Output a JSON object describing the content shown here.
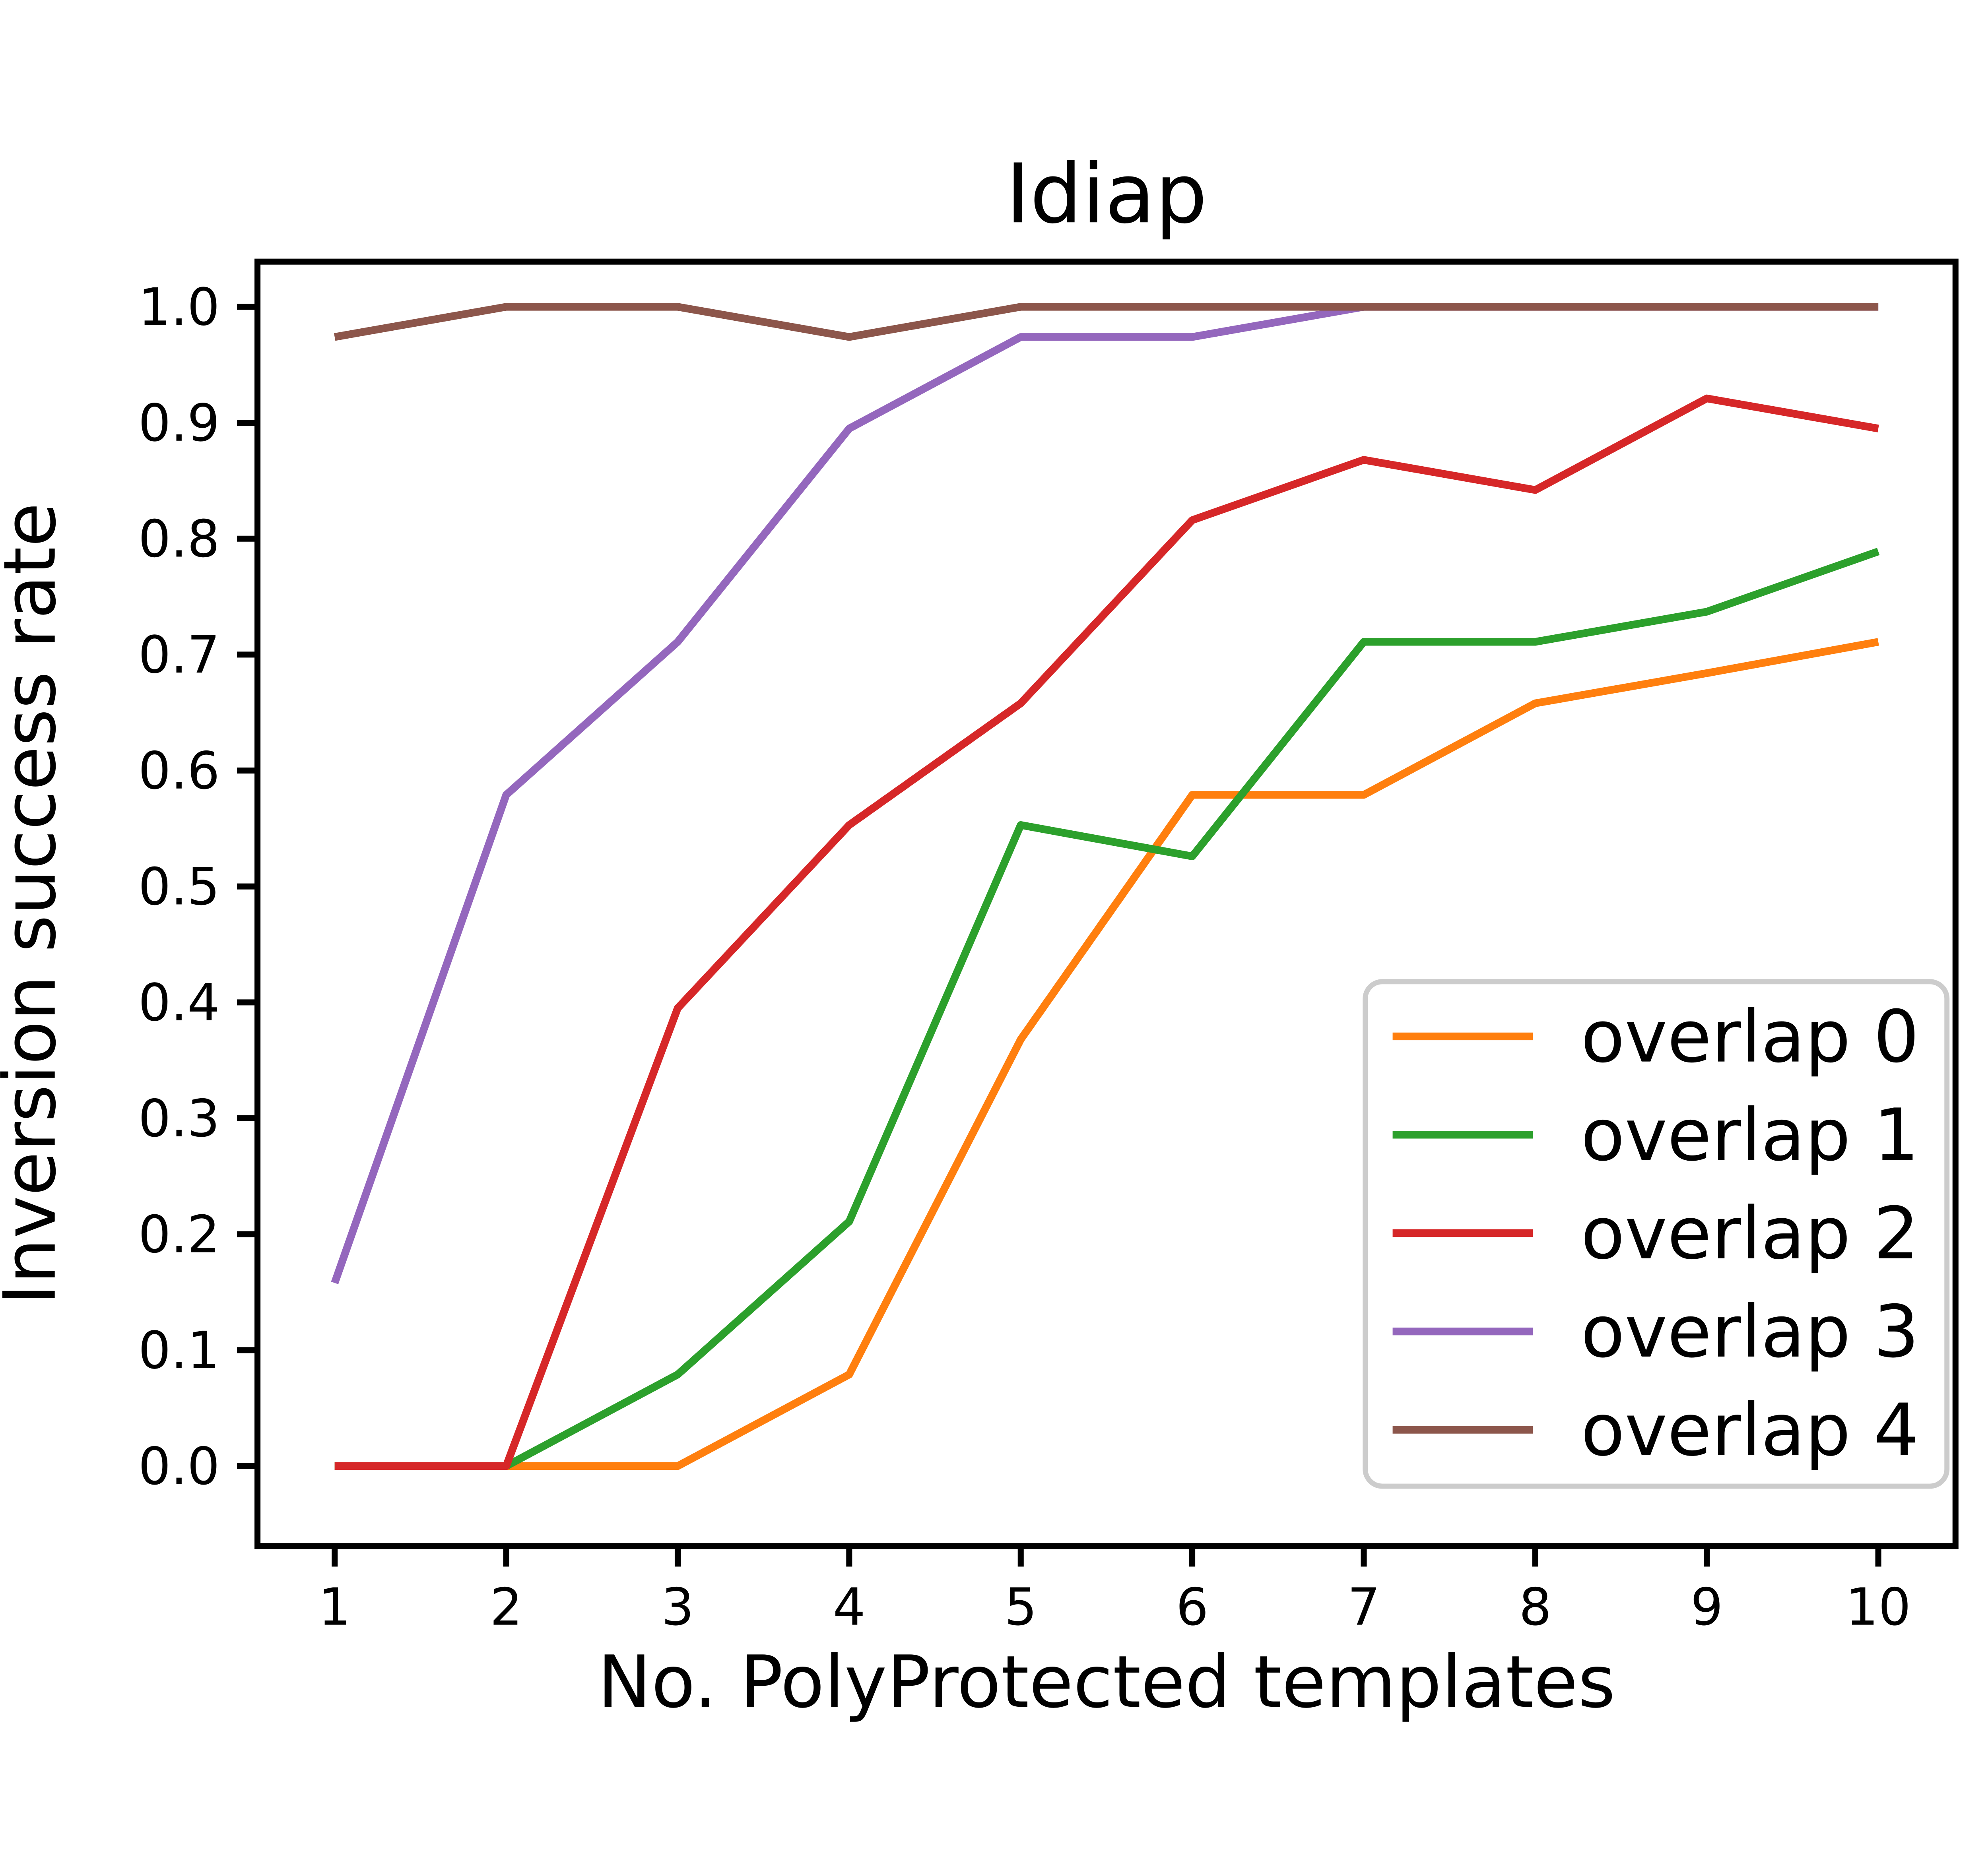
{
  "figure": {
    "background": "#ffffff",
    "text_color": "#000000",
    "spine_color": "#000000",
    "legend_border_color": "#cccccc"
  },
  "chart_data": {
    "type": "line",
    "title": "Idiap",
    "xlabel": "No. PolyProtected templates",
    "ylabel": "Inversion success rate",
    "grid": false,
    "legend_position": "lower right",
    "x": [
      1,
      2,
      3,
      4,
      5,
      6,
      7,
      8,
      9,
      10
    ],
    "xtick_labels": [
      "1",
      "2",
      "3",
      "4",
      "5",
      "6",
      "7",
      "8",
      "9",
      "10"
    ],
    "ytick_values": [
      0.0,
      0.1,
      0.2,
      0.3,
      0.4,
      0.5,
      0.6,
      0.7,
      0.8,
      0.9,
      1.0
    ],
    "ytick_labels": [
      "0.0",
      "0.1",
      "0.2",
      "0.3",
      "0.4",
      "0.5",
      "0.6",
      "0.7",
      "0.8",
      "0.9",
      "1.0"
    ],
    "xlim": [
      0.55,
      10.45
    ],
    "ylim": [
      -0.069,
      1.039
    ],
    "series": [
      {
        "name": "overlap 0",
        "color": "#ff7f0e",
        "values": [
          0.0,
          0.0,
          0.0,
          0.079,
          0.368,
          0.579,
          0.579,
          0.658,
          0.684,
          0.711
        ]
      },
      {
        "name": "overlap 1",
        "color": "#2ca02c",
        "values": [
          0.0,
          0.0,
          0.079,
          0.211,
          0.553,
          0.526,
          0.711,
          0.711,
          0.737,
          0.789
        ]
      },
      {
        "name": "overlap 2",
        "color": "#d62728",
        "values": [
          0.0,
          0.0,
          0.395,
          0.553,
          0.658,
          0.816,
          0.868,
          0.842,
          0.921,
          0.895
        ]
      },
      {
        "name": "overlap 3",
        "color": "#9467bd",
        "values": [
          0.158,
          0.579,
          0.711,
          0.895,
          0.974,
          0.974,
          1.0,
          1.0,
          1.0,
          1.0
        ]
      },
      {
        "name": "overlap 4",
        "color": "#8c564b",
        "values": [
          0.974,
          1.0,
          1.0,
          0.974,
          1.0,
          1.0,
          1.0,
          1.0,
          1.0,
          1.0
        ]
      }
    ]
  }
}
